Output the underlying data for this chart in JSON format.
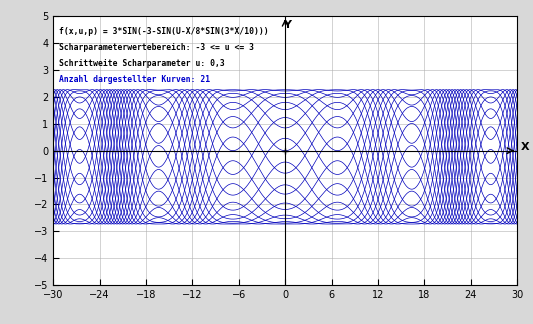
{
  "title": "f(x,u,p) = 3*SIN(-3-SIN(U-X/8*SIN(3*X/10)))",
  "param_label1": "Scharparameterwertebereich: -3 <= u <= 3",
  "param_label2": "Schrittweite Scharparameter u: 0,3",
  "param_label3": "Anzahl dargestellter Kurven: 21",
  "u_min": -3.0,
  "u_max": 3.0,
  "u_step": 0.3,
  "x_min": -30,
  "x_max": 30,
  "y_min": -5,
  "y_max": 5,
  "x_ticks": [
    -30,
    -24,
    -18,
    -12,
    -6,
    0,
    6,
    12,
    18,
    24,
    30
  ],
  "y_ticks": [
    -5,
    -4,
    -3,
    -2,
    -1,
    0,
    1,
    2,
    3,
    4,
    5
  ],
  "line_color": "#0000bb",
  "bg_color": "#d8d8d8",
  "plot_bg": "#ffffff",
  "grid_color": "#b0b0b0",
  "text_color": "#000000",
  "annotation_color": "#0000cc",
  "num_points": 3000
}
